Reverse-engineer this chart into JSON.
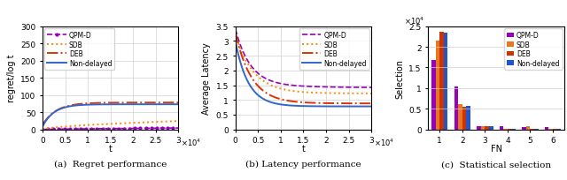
{
  "regret": {
    "t_max": 30000,
    "ylabel": "regret/log t",
    "xlabel": "t",
    "caption": "(a)  Regret performance",
    "ylim": [
      0,
      300
    ],
    "xlim": [
      0,
      30000
    ],
    "yticks": [
      0,
      50,
      100,
      150,
      200,
      250,
      300
    ],
    "xtick_vals": [
      0,
      5000,
      10000,
      15000,
      20000,
      25000,
      30000
    ],
    "xtick_labels": [
      "0",
      "0.5",
      "1",
      "1.5",
      "2",
      "2.5",
      "3"
    ],
    "curves": {
      "QPM-D": {
        "color": "#9900bb",
        "linestyle": "--",
        "lw": 1.2,
        "marker": "o",
        "markersize": 2.0,
        "markevery": 80
      },
      "SDB": {
        "color": "#ff8800",
        "linestyle": ":",
        "lw": 1.4
      },
      "DEB": {
        "color": "#dd3300",
        "linestyle": "-.",
        "lw": 1.4
      },
      "Non-delayed": {
        "color": "#3366cc",
        "linestyle": "-",
        "lw": 1.4
      }
    }
  },
  "latency": {
    "t_max": 30000,
    "ylabel": "Average Latency",
    "xlabel": "t",
    "caption": "(b) Latency performance",
    "ylim": [
      0,
      3.5
    ],
    "xlim": [
      0,
      30000
    ],
    "yticks": [
      0,
      0.5,
      1.0,
      1.5,
      2.0,
      2.5,
      3.0,
      3.5
    ],
    "xtick_vals": [
      0,
      5000,
      10000,
      15000,
      20000,
      25000,
      30000
    ],
    "xtick_labels": [
      "0",
      "0.5",
      "1",
      "1.5",
      "2",
      "2.5",
      "3"
    ],
    "curves": {
      "QPM-D": {
        "color": "#9900bb",
        "linestyle": "--",
        "lw": 1.2
      },
      "SDB": {
        "color": "#ff8800",
        "linestyle": ":",
        "lw": 1.4
      },
      "DEB": {
        "color": "#dd3300",
        "linestyle": "-.",
        "lw": 1.4
      },
      "Non-delayed": {
        "color": "#3366cc",
        "linestyle": "-",
        "lw": 1.4
      }
    }
  },
  "bar": {
    "ylabel": "Selection",
    "xlabel": "FN",
    "caption": "(c)  Statistical selection",
    "fn_labels": [
      "1",
      "2",
      "3",
      "4",
      "5",
      "6"
    ],
    "data": {
      "QPM-D": [
        16800,
        10500,
        800,
        700,
        600,
        600
      ],
      "SDB": [
        21500,
        6200,
        800,
        200,
        800,
        200
      ],
      "DEB": [
        23700,
        5400,
        800,
        100,
        200,
        100
      ],
      "Non-delayed": [
        23500,
        5700,
        750,
        200,
        200,
        150
      ]
    },
    "colors": {
      "QPM-D": "#9900bb",
      "SDB": "#e87722",
      "DEB": "#cc3300",
      "Non-delayed": "#2255cc"
    },
    "ylim": [
      0,
      25000
    ],
    "ytick_vals": [
      0,
      5000,
      10000,
      15000,
      20000,
      25000
    ],
    "ytick_labels": [
      "0",
      "0.5",
      "1",
      "1.5",
      "2",
      "2.5"
    ]
  }
}
